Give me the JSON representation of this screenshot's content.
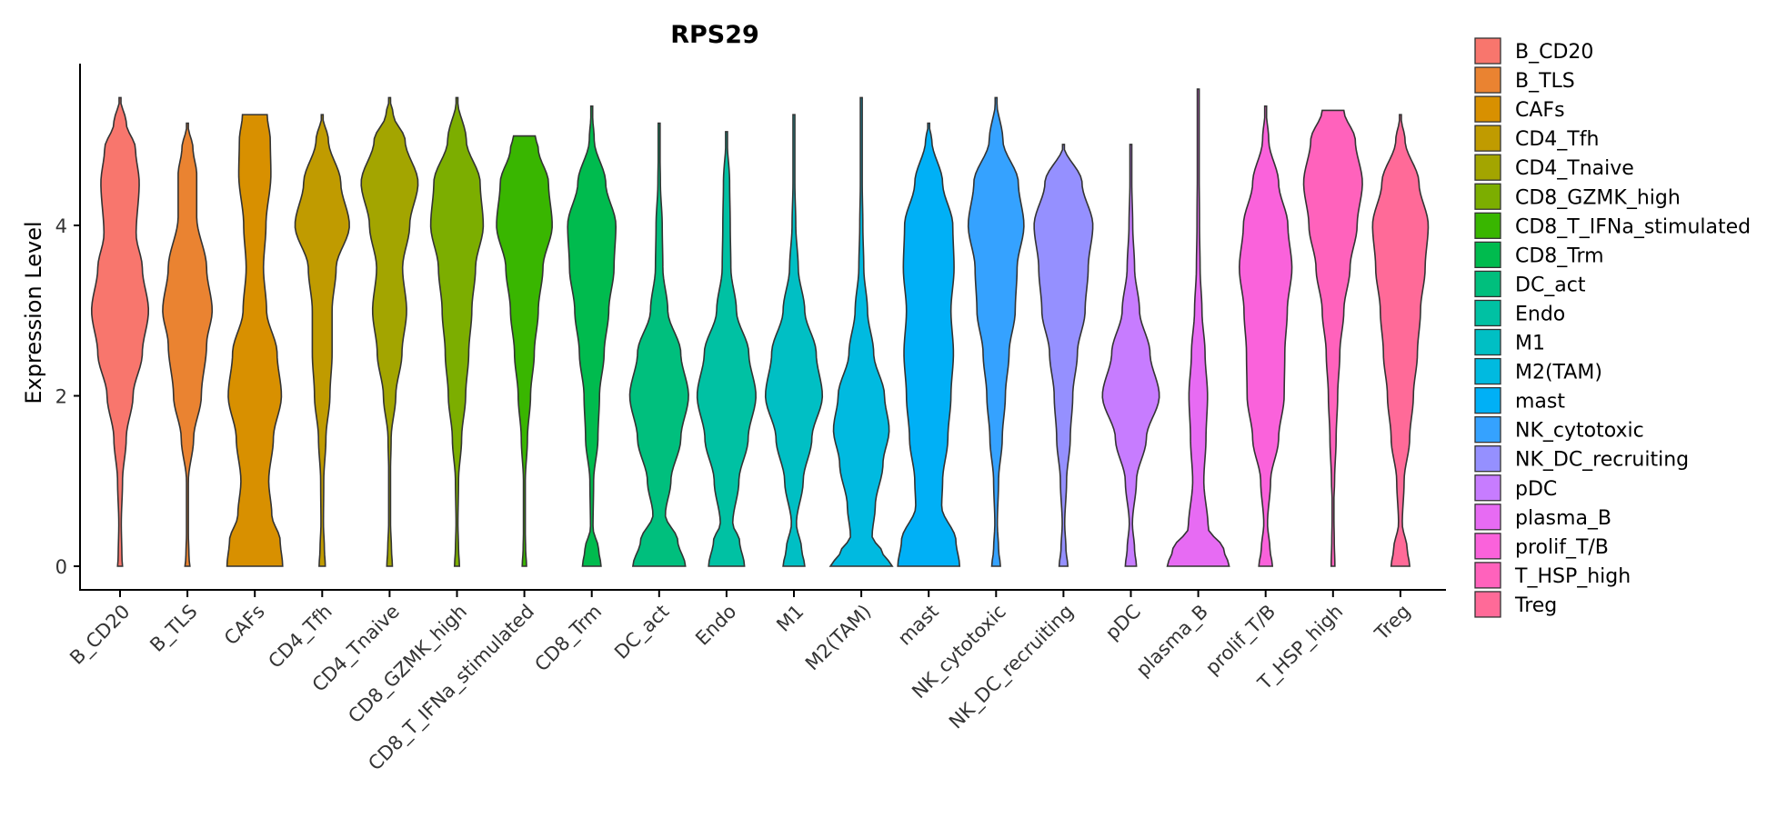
{
  "chart_data": {
    "type": "violin",
    "title": "RPS29",
    "xlabel": "",
    "ylabel": "Expression Level",
    "ylim": [
      -0.25,
      5.85
    ],
    "yticks": [
      0,
      2,
      4
    ],
    "legend_position": "right",
    "categories": [
      "B_CD20",
      "B_TLS",
      "CAFs",
      "CD4_Tfh",
      "CD4_Tnaive",
      "CD8_GZMK_high",
      "CD8_T_IFNa_stimulated",
      "CD8_Trm",
      "DC_act",
      "Endo",
      "M1",
      "M2(TAM)",
      "mast",
      "NK_cytotoxic",
      "NK_DC_recruiting",
      "pDC",
      "plasma_B",
      "prolif_T/B",
      "T_HSP_high",
      "Treg"
    ],
    "colors": [
      "#F8766D",
      "#EA8331",
      "#D89000",
      "#C09B00",
      "#A3A500",
      "#7CAE00",
      "#39B600",
      "#00BB4E",
      "#00BF7D",
      "#00C1A3",
      "#00BFC4",
      "#00BAE0",
      "#00B0F6",
      "#35A2FF",
      "#9590FF",
      "#C77CFF",
      "#E76BF3",
      "#FA62DB",
      "#FF62BC",
      "#FF6A98"
    ],
    "violins": [
      {
        "name": "B_CD20",
        "max": 5.5,
        "profile": [
          [
            0,
            0.08
          ],
          [
            0.1,
            0.06
          ],
          [
            0.5,
            0.04
          ],
          [
            1,
            0.08
          ],
          [
            1.5,
            0.2
          ],
          [
            2,
            0.42
          ],
          [
            2.5,
            0.72
          ],
          [
            3,
            0.92
          ],
          [
            3.5,
            0.72
          ],
          [
            3.9,
            0.52
          ],
          [
            4.5,
            0.62
          ],
          [
            4.9,
            0.5
          ],
          [
            5.2,
            0.2
          ],
          [
            5.5,
            0
          ]
        ]
      },
      {
        "name": "B_TLS",
        "max": 5.2,
        "profile": [
          [
            0,
            0.08
          ],
          [
            0.1,
            0.05
          ],
          [
            0.5,
            0.02
          ],
          [
            1,
            0.03
          ],
          [
            1.5,
            0.2
          ],
          [
            2,
            0.45
          ],
          [
            2.6,
            0.62
          ],
          [
            3.0,
            0.8
          ],
          [
            3.5,
            0.62
          ],
          [
            4.1,
            0.3
          ],
          [
            4.6,
            0.3
          ],
          [
            4.9,
            0.18
          ],
          [
            5.2,
            0
          ]
        ]
      },
      {
        "name": "CAFs",
        "max": 5.3,
        "profile": [
          [
            0,
            0.9
          ],
          [
            0.3,
            0.82
          ],
          [
            0.6,
            0.55
          ],
          [
            1,
            0.45
          ],
          [
            1.5,
            0.6
          ],
          [
            2,
            0.86
          ],
          [
            2.5,
            0.72
          ],
          [
            3,
            0.38
          ],
          [
            3.5,
            0.28
          ],
          [
            4,
            0.36
          ],
          [
            4.6,
            0.52
          ],
          [
            5.0,
            0.5
          ],
          [
            5.3,
            0.4
          ]
        ]
      },
      {
        "name": "CD4_Tfh",
        "max": 5.3,
        "profile": [
          [
            0,
            0.1
          ],
          [
            0.2,
            0.07
          ],
          [
            0.5,
            0.04
          ],
          [
            1,
            0.05
          ],
          [
            1.5,
            0.12
          ],
          [
            2,
            0.25
          ],
          [
            2.5,
            0.32
          ],
          [
            3,
            0.32
          ],
          [
            3.5,
            0.45
          ],
          [
            4,
            0.88
          ],
          [
            4.5,
            0.6
          ],
          [
            5,
            0.2
          ],
          [
            5.3,
            0
          ]
        ]
      },
      {
        "name": "CD4_Tnaive",
        "max": 5.5,
        "profile": [
          [
            0,
            0.09
          ],
          [
            0.2,
            0.06
          ],
          [
            0.5,
            0.03
          ],
          [
            1,
            0.02
          ],
          [
            1.5,
            0.05
          ],
          [
            2,
            0.2
          ],
          [
            2.5,
            0.4
          ],
          [
            3,
            0.55
          ],
          [
            3.5,
            0.42
          ],
          [
            4,
            0.65
          ],
          [
            4.5,
            0.92
          ],
          [
            5,
            0.5
          ],
          [
            5.3,
            0.12
          ],
          [
            5.5,
            0
          ]
        ]
      },
      {
        "name": "CD8_GZMK_high",
        "max": 5.5,
        "profile": [
          [
            0,
            0.08
          ],
          [
            0.2,
            0.05
          ],
          [
            0.5,
            0.03
          ],
          [
            1,
            0.05
          ],
          [
            1.5,
            0.15
          ],
          [
            2,
            0.28
          ],
          [
            2.5,
            0.38
          ],
          [
            3,
            0.48
          ],
          [
            3.5,
            0.6
          ],
          [
            4,
            0.85
          ],
          [
            4.5,
            0.75
          ],
          [
            5,
            0.3
          ],
          [
            5.5,
            0
          ]
        ]
      },
      {
        "name": "CD8_T_IFNa_stimulated",
        "max": 5.05,
        "profile": [
          [
            0,
            0.07
          ],
          [
            0.2,
            0.04
          ],
          [
            0.5,
            0.02
          ],
          [
            1,
            0.03
          ],
          [
            1.5,
            0.1
          ],
          [
            2,
            0.2
          ],
          [
            2.5,
            0.32
          ],
          [
            3,
            0.45
          ],
          [
            3.5,
            0.6
          ],
          [
            4,
            0.9
          ],
          [
            4.5,
            0.78
          ],
          [
            4.9,
            0.45
          ],
          [
            5.05,
            0.35
          ]
        ]
      },
      {
        "name": "CD8_Trm",
        "max": 5.4,
        "profile": [
          [
            0,
            0.3
          ],
          [
            0.2,
            0.22
          ],
          [
            0.45,
            0.04
          ],
          [
            1,
            0.06
          ],
          [
            1.5,
            0.2
          ],
          [
            2,
            0.25
          ],
          [
            2.5,
            0.4
          ],
          [
            3,
            0.55
          ],
          [
            3.5,
            0.72
          ],
          [
            4,
            0.78
          ],
          [
            4.5,
            0.45
          ],
          [
            5,
            0.08
          ],
          [
            5.4,
            0
          ]
        ]
      },
      {
        "name": "DC_act",
        "max": 5.2,
        "profile": [
          [
            0,
            0.85
          ],
          [
            0.3,
            0.6
          ],
          [
            0.6,
            0.2
          ],
          [
            1,
            0.38
          ],
          [
            1.5,
            0.7
          ],
          [
            2,
            0.95
          ],
          [
            2.5,
            0.7
          ],
          [
            3,
            0.28
          ],
          [
            3.5,
            0.12
          ],
          [
            4,
            0.1
          ],
          [
            4.5,
            0.04
          ],
          [
            5.2,
            0
          ]
        ]
      },
      {
        "name": "Endo",
        "max": 5.1,
        "profile": [
          [
            0,
            0.58
          ],
          [
            0.3,
            0.42
          ],
          [
            0.5,
            0.2
          ],
          [
            1,
            0.4
          ],
          [
            1.5,
            0.7
          ],
          [
            2,
            0.95
          ],
          [
            2.5,
            0.72
          ],
          [
            3,
            0.32
          ],
          [
            3.5,
            0.14
          ],
          [
            4,
            0.12
          ],
          [
            4.5,
            0.1
          ],
          [
            5.1,
            0
          ]
        ]
      },
      {
        "name": "M1",
        "max": 5.3,
        "profile": [
          [
            0,
            0.35
          ],
          [
            0.2,
            0.25
          ],
          [
            0.5,
            0.08
          ],
          [
            1,
            0.3
          ],
          [
            1.5,
            0.58
          ],
          [
            2,
            0.92
          ],
          [
            2.5,
            0.72
          ],
          [
            3,
            0.35
          ],
          [
            3.5,
            0.14
          ],
          [
            4,
            0.06
          ],
          [
            4.5,
            0.03
          ],
          [
            5.3,
            0
          ]
        ]
      },
      {
        "name": "M2(TAM)",
        "max": 5.5,
        "profile": [
          [
            0,
            1.0
          ],
          [
            0.15,
            0.7
          ],
          [
            0.35,
            0.35
          ],
          [
            0.7,
            0.45
          ],
          [
            1.2,
            0.7
          ],
          [
            1.6,
            0.9
          ],
          [
            2,
            0.75
          ],
          [
            2.5,
            0.4
          ],
          [
            3,
            0.2
          ],
          [
            3.5,
            0.08
          ],
          [
            4,
            0.05
          ],
          [
            4.5,
            0.03
          ],
          [
            5.5,
            0
          ]
        ]
      },
      {
        "name": "mast",
        "max": 5.2,
        "profile": [
          [
            0,
            1.0
          ],
          [
            0.3,
            0.88
          ],
          [
            0.7,
            0.42
          ],
          [
            1,
            0.45
          ],
          [
            1.5,
            0.62
          ],
          [
            2,
            0.72
          ],
          [
            2.5,
            0.8
          ],
          [
            3,
            0.72
          ],
          [
            3.5,
            0.82
          ],
          [
            4,
            0.78
          ],
          [
            4.5,
            0.45
          ],
          [
            5.0,
            0.1
          ],
          [
            5.2,
            0
          ]
        ]
      },
      {
        "name": "NK_cytotoxic",
        "max": 5.5,
        "profile": [
          [
            0,
            0.14
          ],
          [
            0.2,
            0.08
          ],
          [
            0.5,
            0.04
          ],
          [
            1,
            0.08
          ],
          [
            1.5,
            0.2
          ],
          [
            2,
            0.3
          ],
          [
            2.5,
            0.42
          ],
          [
            3,
            0.62
          ],
          [
            3.5,
            0.68
          ],
          [
            4,
            0.9
          ],
          [
            4.5,
            0.72
          ],
          [
            5,
            0.22
          ],
          [
            5.5,
            0
          ]
        ]
      },
      {
        "name": "NK_DC_recruiting",
        "max": 4.95,
        "profile": [
          [
            0,
            0.14
          ],
          [
            0.2,
            0.08
          ],
          [
            0.5,
            0.04
          ],
          [
            1,
            0.1
          ],
          [
            1.5,
            0.22
          ],
          [
            2,
            0.3
          ],
          [
            2.5,
            0.45
          ],
          [
            3,
            0.7
          ],
          [
            3.5,
            0.8
          ],
          [
            4,
            0.95
          ],
          [
            4.5,
            0.6
          ],
          [
            4.95,
            0
          ]
        ]
      },
      {
        "name": "pDC",
        "max": 4.95,
        "profile": [
          [
            0,
            0.18
          ],
          [
            0.2,
            0.12
          ],
          [
            0.5,
            0.05
          ],
          [
            1,
            0.18
          ],
          [
            1.5,
            0.5
          ],
          [
            2,
            0.92
          ],
          [
            2.5,
            0.62
          ],
          [
            3,
            0.28
          ],
          [
            3.5,
            0.12
          ],
          [
            4,
            0.06
          ],
          [
            4.5,
            0.03
          ],
          [
            4.95,
            0
          ]
        ]
      },
      {
        "name": "plasma_B",
        "max": 5.6,
        "profile": [
          [
            0,
            1.0
          ],
          [
            0.2,
            0.82
          ],
          [
            0.45,
            0.32
          ],
          [
            1,
            0.18
          ],
          [
            1.5,
            0.25
          ],
          [
            2,
            0.3
          ],
          [
            2.5,
            0.22
          ],
          [
            3,
            0.12
          ],
          [
            3.5,
            0.06
          ],
          [
            4,
            0.04
          ],
          [
            5,
            0.02
          ],
          [
            5.6,
            0
          ]
        ]
      },
      {
        "name": "prolif_T/B",
        "max": 5.4,
        "profile": [
          [
            0,
            0.22
          ],
          [
            0.2,
            0.14
          ],
          [
            0.5,
            0.06
          ],
          [
            1,
            0.16
          ],
          [
            1.5,
            0.42
          ],
          [
            2,
            0.6
          ],
          [
            2.5,
            0.62
          ],
          [
            3,
            0.7
          ],
          [
            3.5,
            0.85
          ],
          [
            4,
            0.72
          ],
          [
            4.5,
            0.42
          ],
          [
            5,
            0.1
          ],
          [
            5.4,
            0
          ]
        ]
      },
      {
        "name": "T_HSP_high",
        "max": 5.35,
        "profile": [
          [
            0,
            0.06
          ],
          [
            0.3,
            0.04
          ],
          [
            0.7,
            0.02
          ],
          [
            1,
            0.05
          ],
          [
            1.5,
            0.1
          ],
          [
            2,
            0.15
          ],
          [
            2.5,
            0.22
          ],
          [
            3,
            0.35
          ],
          [
            3.5,
            0.55
          ],
          [
            4,
            0.78
          ],
          [
            4.5,
            0.95
          ],
          [
            5,
            0.72
          ],
          [
            5.35,
            0.35
          ]
        ]
      },
      {
        "name": "Treg",
        "max": 5.3,
        "profile": [
          [
            0,
            0.3
          ],
          [
            0.2,
            0.22
          ],
          [
            0.5,
            0.06
          ],
          [
            1,
            0.12
          ],
          [
            1.5,
            0.3
          ],
          [
            2,
            0.42
          ],
          [
            2.5,
            0.55
          ],
          [
            3,
            0.65
          ],
          [
            3.5,
            0.8
          ],
          [
            4,
            0.9
          ],
          [
            4.5,
            0.6
          ],
          [
            5,
            0.15
          ],
          [
            5.3,
            0
          ]
        ]
      }
    ]
  }
}
